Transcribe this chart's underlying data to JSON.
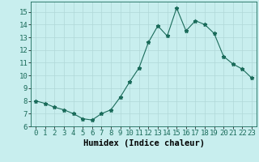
{
  "x": [
    0,
    1,
    2,
    3,
    4,
    5,
    6,
    7,
    8,
    9,
    10,
    11,
    12,
    13,
    14,
    15,
    16,
    17,
    18,
    19,
    20,
    21,
    22,
    23
  ],
  "y": [
    8.0,
    7.8,
    7.5,
    7.3,
    7.0,
    6.6,
    6.5,
    7.0,
    7.3,
    8.3,
    9.5,
    10.6,
    12.6,
    13.9,
    13.1,
    15.3,
    13.5,
    14.3,
    14.0,
    13.3,
    11.5,
    10.9,
    10.5,
    9.8
  ],
  "xlabel": "Humidex (Indice chaleur)",
  "xlim": [
    -0.5,
    23.5
  ],
  "ylim": [
    6,
    15.8
  ],
  "yticks": [
    6,
    7,
    8,
    9,
    10,
    11,
    12,
    13,
    14,
    15
  ],
  "xticks": [
    0,
    1,
    2,
    3,
    4,
    5,
    6,
    7,
    8,
    9,
    10,
    11,
    12,
    13,
    14,
    15,
    16,
    17,
    18,
    19,
    20,
    21,
    22,
    23
  ],
  "line_color": "#1a6b5a",
  "marker": "*",
  "bg_color": "#c8eeee",
  "grid_color": "#b0d8d8",
  "xlabel_fontsize": 7.5,
  "tick_fontsize": 6.5
}
